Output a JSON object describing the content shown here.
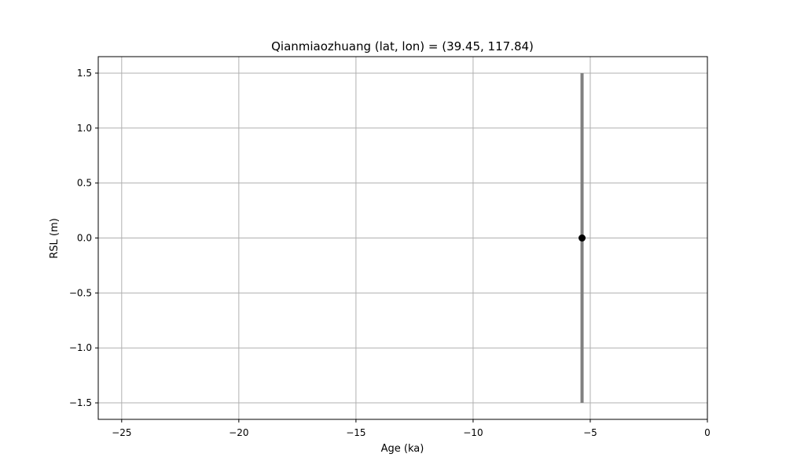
{
  "chart_data": {
    "type": "scatter",
    "title": "Qianmiaozhuang (lat, lon) = (39.45, 117.84)",
    "xlabel": "Age (ka)",
    "ylabel": "RSL (m)",
    "xlim": [
      -26,
      0
    ],
    "ylim": [
      -1.65,
      1.65
    ],
    "grid": true,
    "x_ticks": [
      {
        "value": -25,
        "label": "−25"
      },
      {
        "value": -20,
        "label": "−20"
      },
      {
        "value": -15,
        "label": "−15"
      },
      {
        "value": -10,
        "label": "−10"
      },
      {
        "value": -5,
        "label": "−5"
      },
      {
        "value": 0,
        "label": "0"
      }
    ],
    "y_ticks": [
      {
        "value": 1.5,
        "label": "1.5"
      },
      {
        "value": 1.0,
        "label": "1.0"
      },
      {
        "value": 0.5,
        "label": "0.5"
      },
      {
        "value": 0.0,
        "label": "0.0"
      },
      {
        "value": -0.5,
        "label": "−0.5"
      },
      {
        "value": -1.0,
        "label": "−1.0"
      },
      {
        "value": -1.5,
        "label": "−1.5"
      }
    ],
    "points": [
      {
        "x": -5.35,
        "y": 0.0,
        "y_err_low": -1.5,
        "y_err_high": 1.5
      }
    ],
    "colors": {
      "point": "#000000",
      "errorbar": "#808080",
      "grid": "#b0b0b0",
      "axes": "#000000"
    }
  }
}
